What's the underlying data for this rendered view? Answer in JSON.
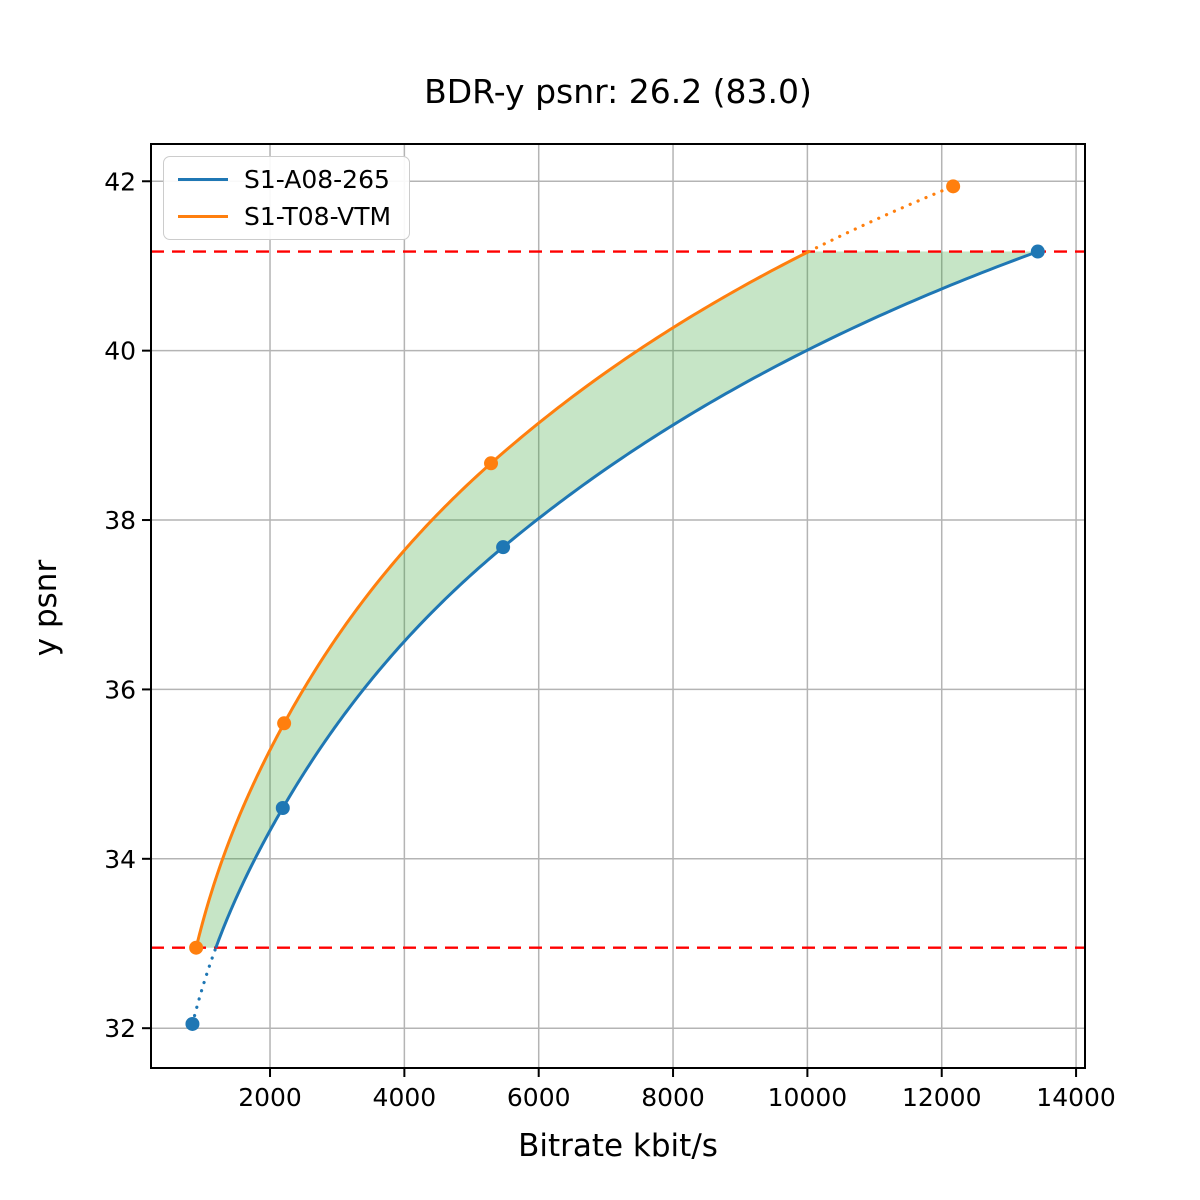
{
  "chart_data": {
    "type": "line",
    "title": "BDR-y psnr: 26.2 (83.0)",
    "xlabel": "Bitrate kbit/s",
    "ylabel": "y psnr",
    "xlim": [
      228,
      14133
    ],
    "ylim": [
      31.53,
      42.44
    ],
    "xticks": [
      2000,
      4000,
      6000,
      8000,
      10000,
      12000,
      14000
    ],
    "yticks": [
      32,
      34,
      36,
      38,
      40,
      42
    ],
    "grid": true,
    "grid_color": "#b4b4b4",
    "axis_color": "#000000",
    "legend_position": "upper-left",
    "series": [
      {
        "name": "S1-A08-265",
        "color": "#1f77b4",
        "x": [
          845,
          2190,
          5470,
          13430
        ],
        "y": [
          32.05,
          34.6,
          37.68,
          41.17
        ]
      },
      {
        "name": "S1-T08-VTM",
        "color": "#ff7f0e",
        "x": [
          900,
          2210,
          5290,
          12170
        ],
        "y": [
          32.95,
          35.6,
          38.67,
          41.94
        ]
      }
    ],
    "overlap_region": {
      "psnr_low": 32.95,
      "psnr_high": 41.17,
      "fill_color": "#2ca02c",
      "fill_alpha": 0.27,
      "note": "curves solid inside overlap, dotted outside; shaded between curves"
    },
    "ref_lines": {
      "values": [
        32.95,
        41.17
      ],
      "color": "#ff0000",
      "style": "dashed"
    }
  }
}
